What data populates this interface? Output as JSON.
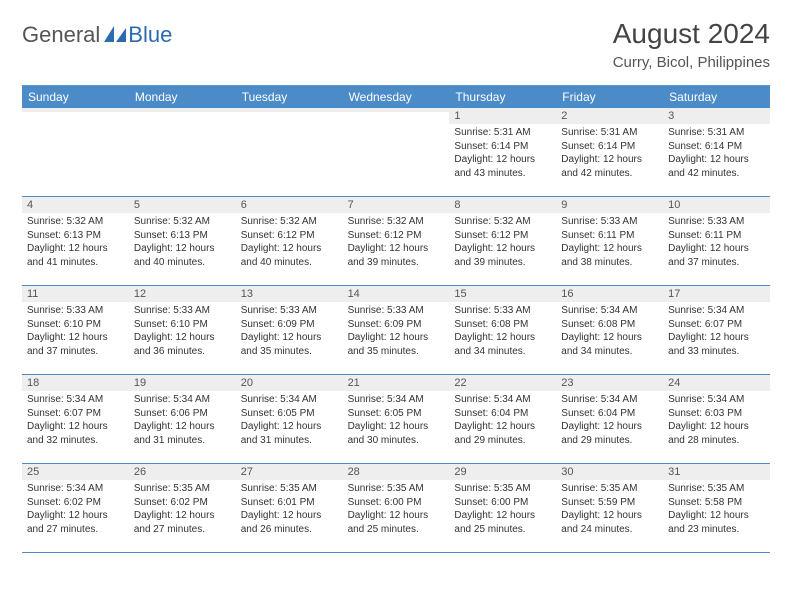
{
  "logo": {
    "general": "General",
    "blue": "Blue"
  },
  "title": {
    "month_year": "August 2024",
    "location": "Curry, Bicol, Philippines"
  },
  "colors": {
    "header_bg": "#4a8bc8",
    "header_text": "#ffffff",
    "row_border": "#4a8bc8",
    "daynum_bg": "#eeeeee",
    "logo_blue": "#2b6bb0"
  },
  "weekdays": [
    "Sunday",
    "Monday",
    "Tuesday",
    "Wednesday",
    "Thursday",
    "Friday",
    "Saturday"
  ],
  "weeks": [
    [
      {
        "day": "",
        "sunrise": "",
        "sunset": "",
        "daylight": ""
      },
      {
        "day": "",
        "sunrise": "",
        "sunset": "",
        "daylight": ""
      },
      {
        "day": "",
        "sunrise": "",
        "sunset": "",
        "daylight": ""
      },
      {
        "day": "",
        "sunrise": "",
        "sunset": "",
        "daylight": ""
      },
      {
        "day": "1",
        "sunrise": "Sunrise: 5:31 AM",
        "sunset": "Sunset: 6:14 PM",
        "daylight": "Daylight: 12 hours and 43 minutes."
      },
      {
        "day": "2",
        "sunrise": "Sunrise: 5:31 AM",
        "sunset": "Sunset: 6:14 PM",
        "daylight": "Daylight: 12 hours and 42 minutes."
      },
      {
        "day": "3",
        "sunrise": "Sunrise: 5:31 AM",
        "sunset": "Sunset: 6:14 PM",
        "daylight": "Daylight: 12 hours and 42 minutes."
      }
    ],
    [
      {
        "day": "4",
        "sunrise": "Sunrise: 5:32 AM",
        "sunset": "Sunset: 6:13 PM",
        "daylight": "Daylight: 12 hours and 41 minutes."
      },
      {
        "day": "5",
        "sunrise": "Sunrise: 5:32 AM",
        "sunset": "Sunset: 6:13 PM",
        "daylight": "Daylight: 12 hours and 40 minutes."
      },
      {
        "day": "6",
        "sunrise": "Sunrise: 5:32 AM",
        "sunset": "Sunset: 6:12 PM",
        "daylight": "Daylight: 12 hours and 40 minutes."
      },
      {
        "day": "7",
        "sunrise": "Sunrise: 5:32 AM",
        "sunset": "Sunset: 6:12 PM",
        "daylight": "Daylight: 12 hours and 39 minutes."
      },
      {
        "day": "8",
        "sunrise": "Sunrise: 5:32 AM",
        "sunset": "Sunset: 6:12 PM",
        "daylight": "Daylight: 12 hours and 39 minutes."
      },
      {
        "day": "9",
        "sunrise": "Sunrise: 5:33 AM",
        "sunset": "Sunset: 6:11 PM",
        "daylight": "Daylight: 12 hours and 38 minutes."
      },
      {
        "day": "10",
        "sunrise": "Sunrise: 5:33 AM",
        "sunset": "Sunset: 6:11 PM",
        "daylight": "Daylight: 12 hours and 37 minutes."
      }
    ],
    [
      {
        "day": "11",
        "sunrise": "Sunrise: 5:33 AM",
        "sunset": "Sunset: 6:10 PM",
        "daylight": "Daylight: 12 hours and 37 minutes."
      },
      {
        "day": "12",
        "sunrise": "Sunrise: 5:33 AM",
        "sunset": "Sunset: 6:10 PM",
        "daylight": "Daylight: 12 hours and 36 minutes."
      },
      {
        "day": "13",
        "sunrise": "Sunrise: 5:33 AM",
        "sunset": "Sunset: 6:09 PM",
        "daylight": "Daylight: 12 hours and 35 minutes."
      },
      {
        "day": "14",
        "sunrise": "Sunrise: 5:33 AM",
        "sunset": "Sunset: 6:09 PM",
        "daylight": "Daylight: 12 hours and 35 minutes."
      },
      {
        "day": "15",
        "sunrise": "Sunrise: 5:33 AM",
        "sunset": "Sunset: 6:08 PM",
        "daylight": "Daylight: 12 hours and 34 minutes."
      },
      {
        "day": "16",
        "sunrise": "Sunrise: 5:34 AM",
        "sunset": "Sunset: 6:08 PM",
        "daylight": "Daylight: 12 hours and 34 minutes."
      },
      {
        "day": "17",
        "sunrise": "Sunrise: 5:34 AM",
        "sunset": "Sunset: 6:07 PM",
        "daylight": "Daylight: 12 hours and 33 minutes."
      }
    ],
    [
      {
        "day": "18",
        "sunrise": "Sunrise: 5:34 AM",
        "sunset": "Sunset: 6:07 PM",
        "daylight": "Daylight: 12 hours and 32 minutes."
      },
      {
        "day": "19",
        "sunrise": "Sunrise: 5:34 AM",
        "sunset": "Sunset: 6:06 PM",
        "daylight": "Daylight: 12 hours and 31 minutes."
      },
      {
        "day": "20",
        "sunrise": "Sunrise: 5:34 AM",
        "sunset": "Sunset: 6:05 PM",
        "daylight": "Daylight: 12 hours and 31 minutes."
      },
      {
        "day": "21",
        "sunrise": "Sunrise: 5:34 AM",
        "sunset": "Sunset: 6:05 PM",
        "daylight": "Daylight: 12 hours and 30 minutes."
      },
      {
        "day": "22",
        "sunrise": "Sunrise: 5:34 AM",
        "sunset": "Sunset: 6:04 PM",
        "daylight": "Daylight: 12 hours and 29 minutes."
      },
      {
        "day": "23",
        "sunrise": "Sunrise: 5:34 AM",
        "sunset": "Sunset: 6:04 PM",
        "daylight": "Daylight: 12 hours and 29 minutes."
      },
      {
        "day": "24",
        "sunrise": "Sunrise: 5:34 AM",
        "sunset": "Sunset: 6:03 PM",
        "daylight": "Daylight: 12 hours and 28 minutes."
      }
    ],
    [
      {
        "day": "25",
        "sunrise": "Sunrise: 5:34 AM",
        "sunset": "Sunset: 6:02 PM",
        "daylight": "Daylight: 12 hours and 27 minutes."
      },
      {
        "day": "26",
        "sunrise": "Sunrise: 5:35 AM",
        "sunset": "Sunset: 6:02 PM",
        "daylight": "Daylight: 12 hours and 27 minutes."
      },
      {
        "day": "27",
        "sunrise": "Sunrise: 5:35 AM",
        "sunset": "Sunset: 6:01 PM",
        "daylight": "Daylight: 12 hours and 26 minutes."
      },
      {
        "day": "28",
        "sunrise": "Sunrise: 5:35 AM",
        "sunset": "Sunset: 6:00 PM",
        "daylight": "Daylight: 12 hours and 25 minutes."
      },
      {
        "day": "29",
        "sunrise": "Sunrise: 5:35 AM",
        "sunset": "Sunset: 6:00 PM",
        "daylight": "Daylight: 12 hours and 25 minutes."
      },
      {
        "day": "30",
        "sunrise": "Sunrise: 5:35 AM",
        "sunset": "Sunset: 5:59 PM",
        "daylight": "Daylight: 12 hours and 24 minutes."
      },
      {
        "day": "31",
        "sunrise": "Sunrise: 5:35 AM",
        "sunset": "Sunset: 5:58 PM",
        "daylight": "Daylight: 12 hours and 23 minutes."
      }
    ]
  ]
}
